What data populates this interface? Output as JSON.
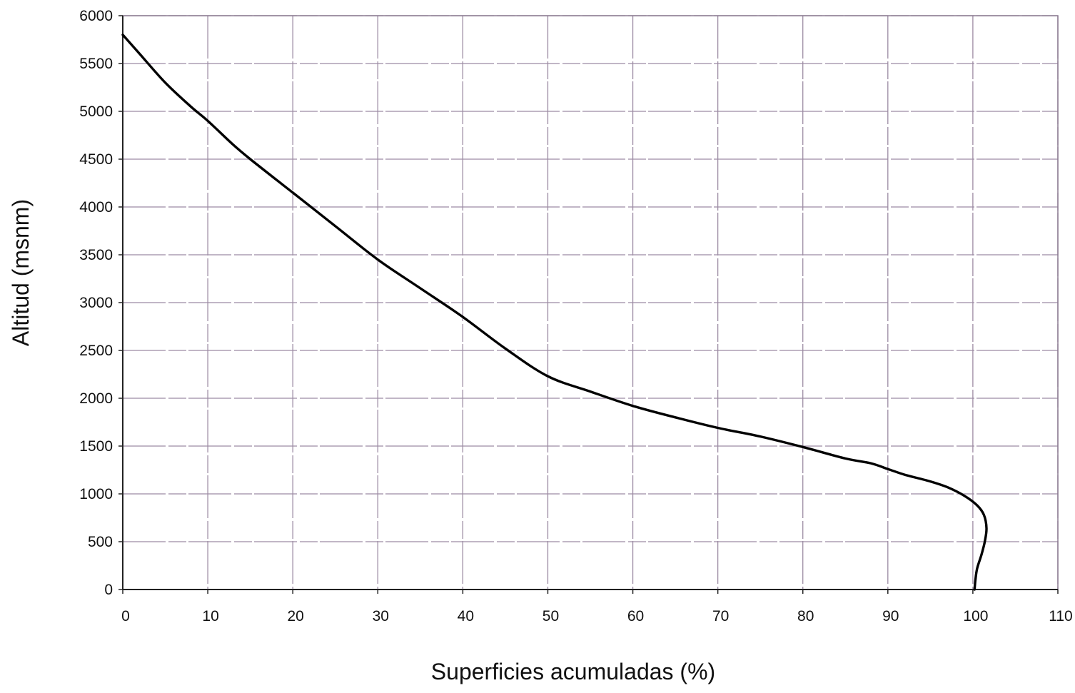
{
  "chart_data": {
    "type": "line",
    "title": "",
    "xlabel": "Superficies acumuladas (%)",
    "ylabel": "Altitud (msnm)",
    "xlim": [
      0,
      110
    ],
    "ylim": [
      0,
      6000
    ],
    "xticks": [
      "0",
      "10",
      "20",
      "30",
      "40",
      "50",
      "60",
      "70",
      "80",
      "90",
      "100",
      "110"
    ],
    "yticks": [
      "0",
      "500",
      "1000",
      "1500",
      "2000",
      "2500",
      "3000",
      "3500",
      "4000",
      "4500",
      "5000",
      "5500",
      "6000"
    ],
    "grid": true,
    "legend": "none",
    "colors": {
      "line": "#000000",
      "grid": "#9c8ba3",
      "background": "#ffffff"
    },
    "series": [
      {
        "x": [
          0,
          2,
          5,
          8,
          10,
          13,
          15,
          20,
          25,
          30,
          35,
          40,
          45,
          50,
          55,
          60,
          65,
          70,
          75,
          80,
          85,
          88,
          90,
          92,
          95,
          97,
          99,
          100.5,
          101.3,
          101.6,
          101.4,
          101,
          100.5,
          100.3,
          100.2
        ],
        "y": [
          5800,
          5600,
          5300,
          5050,
          4900,
          4650,
          4500,
          4150,
          3800,
          3450,
          3150,
          2850,
          2520,
          2230,
          2070,
          1920,
          1800,
          1690,
          1600,
          1490,
          1370,
          1320,
          1260,
          1200,
          1130,
          1070,
          980,
          880,
          780,
          640,
          500,
          360,
          220,
          100,
          0
        ]
      }
    ]
  }
}
